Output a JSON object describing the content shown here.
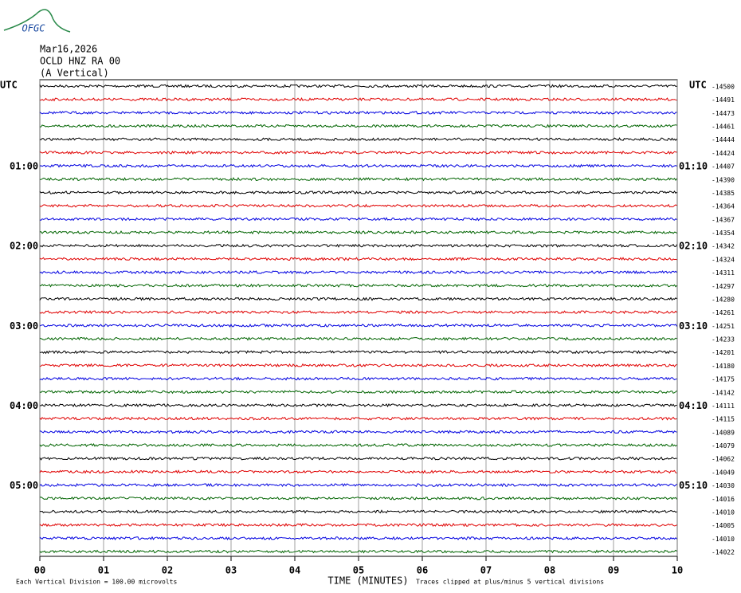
{
  "header": {
    "logo": "OFGC",
    "date": "Mar16,2026",
    "station": "OCLD HNZ RA 00",
    "component": "(A Vertical)",
    "left_zone": "UTC",
    "right_zone": "UTC"
  },
  "chart_data": {
    "type": "helicorder",
    "xlabel": "TIME (MINUTES)",
    "xlim": [
      0,
      10
    ],
    "xticks": [
      {
        "value": 0,
        "label": "00"
      },
      {
        "value": 1,
        "label": "01"
      },
      {
        "value": 2,
        "label": "02"
      },
      {
        "value": 3,
        "label": "03"
      },
      {
        "value": 4,
        "label": "04"
      },
      {
        "value": 5,
        "label": "05"
      },
      {
        "value": 6,
        "label": "06"
      },
      {
        "value": 7,
        "label": "07"
      },
      {
        "value": 8,
        "label": "08"
      },
      {
        "value": 9,
        "label": "09"
      },
      {
        "value": 10,
        "label": "10"
      }
    ],
    "grid": true,
    "colors": [
      "#000000",
      "#e00000",
      "#0000e0",
      "#006400"
    ],
    "offsets": [
      -14500,
      -14491,
      -14473,
      -14461,
      -14444,
      -14424,
      -14407,
      -14390,
      -14385,
      -14364,
      -14367,
      -14354,
      -14342,
      -14324,
      -14311,
      -14297,
      -14280,
      -14261,
      -14251,
      -14233,
      -14201,
      -14180,
      -14175,
      -14142,
      -14111,
      -14115,
      -14089,
      -14079,
      -14062,
      -14049,
      -14030,
      -14016,
      -14010,
      -14005,
      -14010,
      -14022
    ],
    "left_labels": [
      null,
      null,
      null,
      null,
      null,
      null,
      "01:00",
      null,
      null,
      null,
      null,
      null,
      "02:00",
      null,
      null,
      null,
      null,
      null,
      "03:00",
      null,
      null,
      null,
      null,
      null,
      "04:00",
      null,
      null,
      null,
      null,
      null,
      "05:00",
      null,
      null,
      null,
      null,
      null
    ],
    "right_labels": [
      null,
      null,
      null,
      null,
      null,
      null,
      "01:10",
      null,
      null,
      null,
      null,
      null,
      "02:10",
      null,
      null,
      null,
      null,
      null,
      "03:10",
      null,
      null,
      null,
      null,
      null,
      "04:10",
      null,
      null,
      null,
      null,
      null,
      "05:10",
      null,
      null,
      null,
      null,
      null
    ],
    "scale_note": "Each Vertical Division =  100.00 microvolts",
    "clip_note": "Traces clipped at plus/minus 5 vertical divisions"
  }
}
